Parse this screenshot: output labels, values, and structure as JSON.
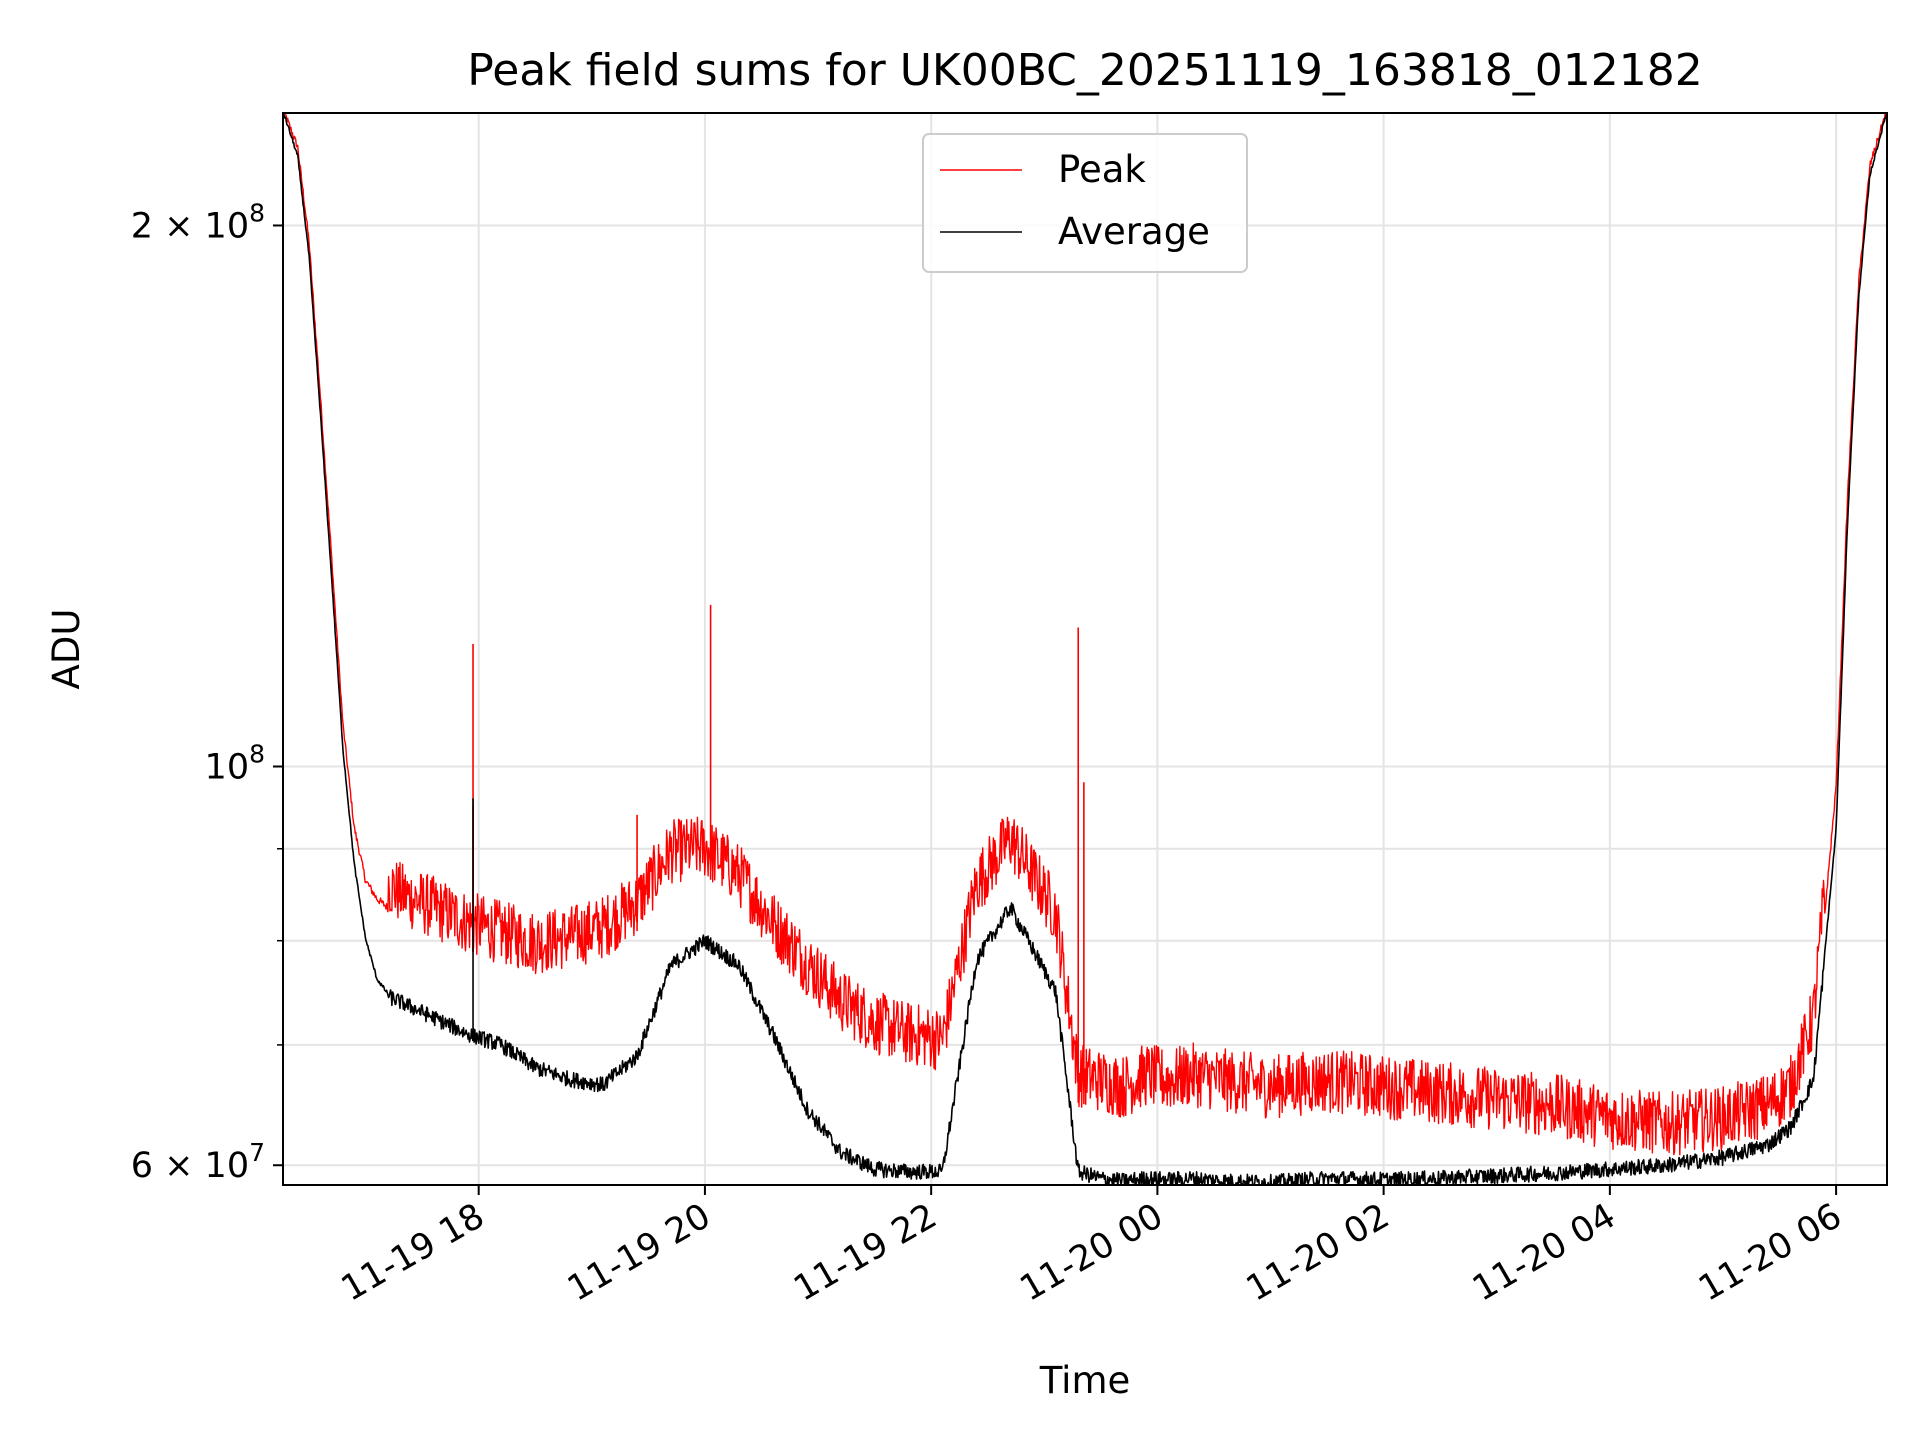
{
  "chart_data": {
    "type": "line",
    "title": "Peak field sums for UK00BC_20251119_163818_012182",
    "xlabel": "Time",
    "ylabel": "ADU",
    "yscale": "log",
    "ylim": [
      58500000,
      231000000
    ],
    "xlim_hours": [
      -0.73,
      13.45
    ],
    "grid": true,
    "legend_position": "upper center",
    "x_ticks": [
      {
        "hours": 1,
        "label": "11-19 18"
      },
      {
        "hours": 3,
        "label": "11-19 20"
      },
      {
        "hours": 5,
        "label": "11-19 22"
      },
      {
        "hours": 7,
        "label": "11-20 00"
      },
      {
        "hours": 9,
        "label": "11-20 02"
      },
      {
        "hours": 11,
        "label": "11-20 04"
      },
      {
        "hours": 13,
        "label": "11-20 06"
      }
    ],
    "y_ticks": [
      {
        "value": 60000000,
        "mantissa": "6",
        "exponent": "7"
      },
      {
        "value": 100000000,
        "mantissa": "",
        "exponent": "8"
      },
      {
        "value": 200000000,
        "mantissa": "2",
        "exponent": "8"
      }
    ],
    "y_minor_ticks": [
      70000000,
      80000000,
      90000000
    ],
    "series": [
      {
        "name": "Peak",
        "color": "#ff0000",
        "x_hours": [
          -0.73,
          -0.6,
          -0.5,
          -0.4,
          -0.3,
          -0.2,
          -0.1,
          0.0,
          0.1,
          0.2,
          0.3,
          0.4,
          0.5,
          0.7,
          0.9,
          1.2,
          1.5,
          1.8,
          2.1,
          2.4,
          2.7,
          3.0,
          3.3,
          3.6,
          3.9,
          4.2,
          4.5,
          4.8,
          5.1,
          5.4,
          5.7,
          6.0,
          6.1,
          6.3,
          6.5,
          6.7,
          6.9,
          7.1,
          7.3,
          7.6,
          8.0,
          8.5,
          9.0,
          9.5,
          10.0,
          10.5,
          11.0,
          11.5,
          12.0,
          12.4,
          12.6,
          12.8,
          13.0,
          13.1,
          13.2,
          13.3,
          13.45
        ],
        "values": [
          231000000,
          220000000,
          195000000,
          160000000,
          130000000,
          105000000,
          92000000,
          86000000,
          84000000,
          83000000,
          82000000,
          81500000,
          81000000,
          80000000,
          79000000,
          78000000,
          77000000,
          77500000,
          78500000,
          81000000,
          86500000,
          87000000,
          84000000,
          79000000,
          75000000,
          71500000,
          69500000,
          68500000,
          68000000,
          83000000,
          88000000,
          82000000,
          80000000,
          65000000,
          64500000,
          64000000,
          65000000,
          64500000,
          65000000,
          64500000,
          64000000,
          64500000,
          64000000,
          63500000,
          63000000,
          62500000,
          61500000,
          61000000,
          61500000,
          62500000,
          64000000,
          70000000,
          97000000,
          140000000,
          185000000,
          215000000,
          231000000
        ]
      },
      {
        "name": "Average",
        "color": "#000000",
        "x_hours": [
          -0.73,
          -0.6,
          -0.5,
          -0.4,
          -0.3,
          -0.2,
          -0.1,
          0.0,
          0.1,
          0.2,
          0.3,
          0.4,
          0.5,
          0.7,
          0.9,
          1.2,
          1.5,
          1.8,
          2.1,
          2.4,
          2.7,
          3.0,
          3.3,
          3.6,
          3.9,
          4.2,
          4.5,
          4.8,
          5.1,
          5.4,
          5.7,
          6.0,
          6.1,
          6.3,
          6.5,
          6.7,
          6.9,
          7.1,
          7.3,
          7.6,
          8.0,
          8.5,
          9.0,
          9.5,
          10.0,
          10.5,
          11.0,
          11.5,
          12.0,
          12.4,
          12.6,
          12.8,
          13.0,
          13.1,
          13.2,
          13.3,
          13.45
        ],
        "values": [
          231000000,
          218000000,
          192000000,
          157000000,
          127000000,
          102000000,
          88000000,
          80000000,
          76000000,
          74500000,
          74000000,
          73500000,
          73000000,
          72000000,
          71000000,
          70000000,
          68000000,
          67000000,
          66500000,
          69000000,
          77500000,
          80000000,
          77500000,
          71000000,
          64500000,
          61000000,
          59700000,
          59500000,
          59500000,
          78000000,
          83500000,
          77000000,
          75000000,
          59500000,
          59000000,
          58800000,
          59000000,
          58900000,
          59000000,
          58800000,
          58700000,
          59000000,
          58900000,
          59000000,
          59200000,
          59400000,
          59700000,
          60000000,
          60600000,
          61600000,
          63000000,
          67000000,
          92000000,
          136000000,
          182000000,
          213000000,
          231000000
        ]
      }
    ],
    "spikes": [
      {
        "series": "Peak",
        "x_hours": 0.95,
        "value": 117000000
      },
      {
        "series": "Peak",
        "x_hours": 0.95,
        "value": 95000000
      },
      {
        "series": "Peak",
        "x_hours": 2.4,
        "value": 94000000
      },
      {
        "series": "Peak",
        "x_hours": 3.05,
        "value": 123000000
      },
      {
        "series": "Peak",
        "x_hours": 6.3,
        "value": 119500000
      },
      {
        "series": "Peak",
        "x_hours": 6.35,
        "value": 98000000
      },
      {
        "series": "Average",
        "x_hours": 0.95,
        "value": 96000000
      }
    ]
  }
}
